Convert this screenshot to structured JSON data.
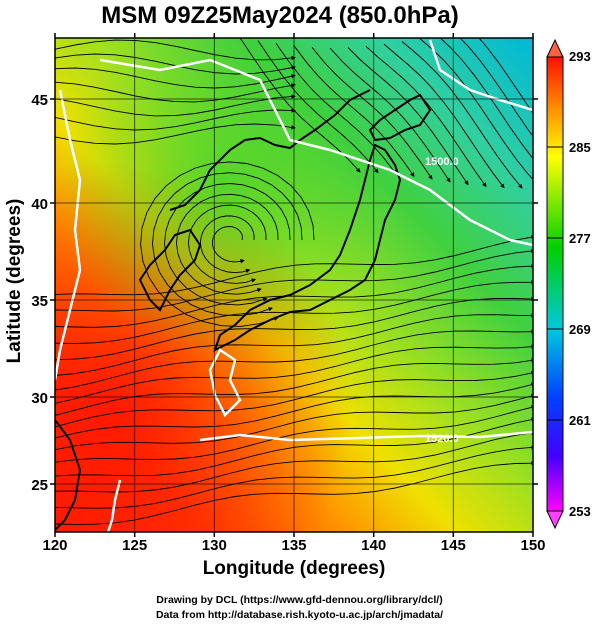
{
  "title": "MSM 09Z25May2024 (850.0hPa)",
  "axes": {
    "xlabel": "Longitude (degrees)",
    "ylabel": "Latitude  (degrees)",
    "xticks": [
      "120",
      "125",
      "130",
      "135",
      "140",
      "145",
      "150"
    ],
    "yticks": [
      "25",
      "30",
      "35",
      "40",
      "45"
    ]
  },
  "colorbar": {
    "ticks": [
      "293",
      "285",
      "277",
      "269",
      "261",
      "253"
    ],
    "range": [
      253,
      293
    ]
  },
  "contour_labels": [
    "1500.0",
    "1520.0",
    "1520.0"
  ],
  "credits": {
    "line1": "Drawing by DCL (https://www.gfd-dennou.org/library/dcl/)",
    "line2": "Data from http://database.rish.kyoto-u.ac.jp/arch/jmadata/"
  },
  "colors": {
    "low": "#ff00ff",
    "mid_low": "#0000ff",
    "mid": "#00cc00",
    "mid_high": "#ffff00",
    "high": "#ff0000",
    "contour": "#ffffff",
    "streamline": "#000000"
  }
}
